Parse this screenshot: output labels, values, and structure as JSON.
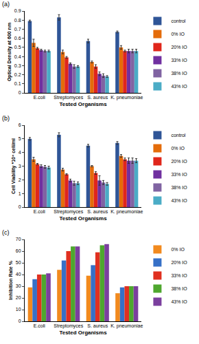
{
  "chart_data": [
    {
      "type": "bar",
      "title": "(a)",
      "x_label": "Tested Organisms",
      "y_label": "Optical Density at 600 nm",
      "categories": [
        "E.coli",
        "Streptomyces",
        "S. aureus",
        "K. pneumoniae"
      ],
      "series": [
        {
          "name": "control",
          "color": "#2f5597",
          "values": [
            0.79,
            0.83,
            0.57,
            0.67
          ],
          "errors": [
            0.01,
            0.03,
            0.02,
            0.01
          ]
        },
        {
          "name": "0% IO",
          "color": "#e46c0a",
          "values": [
            0.55,
            0.45,
            0.34,
            0.5
          ],
          "errors": [
            0.04,
            0.02,
            0.01,
            0.02
          ]
        },
        {
          "name": "20% IO",
          "color": "#e0261b",
          "values": [
            0.49,
            0.39,
            0.29,
            0.46
          ],
          "errors": [
            0.01,
            0.01,
            0.02,
            0.01
          ]
        },
        {
          "name": "33% IO",
          "color": "#7030a0",
          "values": [
            0.47,
            0.32,
            0.21,
            0.46
          ],
          "errors": [
            0.01,
            0.01,
            0.02,
            0.02
          ]
        },
        {
          "name": "38% IO",
          "color": "#8064a2",
          "values": [
            0.46,
            0.29,
            0.19,
            0.46
          ],
          "errors": [
            0.01,
            0.02,
            0.02,
            0.02
          ]
        },
        {
          "name": "43% IO",
          "color": "#4bacc6",
          "values": [
            0.46,
            0.29,
            0.18,
            0.46
          ],
          "errors": [
            0.01,
            0.01,
            0.01,
            0.02
          ]
        }
      ],
      "ylim": [
        0,
        0.9
      ],
      "yticks": [
        0,
        0.1,
        0.2,
        0.3,
        0.4,
        0.5,
        0.6,
        0.7,
        0.8,
        0.9
      ],
      "grid": false,
      "legend": "right"
    },
    {
      "type": "bar",
      "title": "(b)",
      "x_label": "Tested Organisms",
      "y_label": "Cell Viability *10⁸ cell/ml",
      "categories": [
        "E.coli",
        "Streptomyces",
        "S. aureus",
        "K. pneumoniae"
      ],
      "series": [
        {
          "name": "control",
          "color": "#2f5597",
          "values": [
            5.0,
            5.3,
            4.5,
            4.7
          ],
          "errors": [
            0.1,
            0.15,
            0.1,
            0.1
          ]
        },
        {
          "name": "0% IO",
          "color": "#e46c0a",
          "values": [
            3.5,
            2.75,
            3.0,
            3.75
          ],
          "errors": [
            0.15,
            0.1,
            0.05,
            0.1
          ]
        },
        {
          "name": "20% IO",
          "color": "#e0261b",
          "values": [
            3.15,
            2.4,
            2.5,
            3.5
          ],
          "errors": [
            0.05,
            0.05,
            0.1,
            0.1
          ]
        },
        {
          "name": "33% IO",
          "color": "#7030a0",
          "values": [
            3.0,
            1.95,
            1.95,
            3.4
          ],
          "errors": [
            0.1,
            0.1,
            0.35,
            0.2
          ]
        },
        {
          "name": "38% IO",
          "color": "#8064a2",
          "values": [
            2.95,
            1.75,
            1.8,
            3.4
          ],
          "errors": [
            0.1,
            0.15,
            0.15,
            0.2
          ]
        },
        {
          "name": "43% IO",
          "color": "#4bacc6",
          "values": [
            2.9,
            1.75,
            1.7,
            3.4
          ],
          "errors": [
            0.1,
            0.1,
            0.1,
            0.15
          ]
        }
      ],
      "ylim": [
        0,
        6
      ],
      "yticks": [
        0,
        1,
        2,
        3,
        4,
        5,
        6
      ],
      "grid": false,
      "legend": "right"
    },
    {
      "type": "bar",
      "title": "(c)",
      "x_label": "Tested Organisms",
      "y_label": "Inhibition Rate %",
      "categories": [
        "E.coli",
        "Streptomyces",
        "S. aureus",
        "K. pneumoniae"
      ],
      "series": [
        {
          "name": "0% IO",
          "color": "#f28a1e",
          "values": [
            29,
            44,
            39,
            24
          ]
        },
        {
          "name": "20% IO",
          "color": "#3670c7",
          "values": [
            36,
            52,
            48,
            29
          ]
        },
        {
          "name": "33% IO",
          "color": "#e03020",
          "values": [
            40,
            60,
            59,
            30
          ]
        },
        {
          "name": "38% IO",
          "color": "#4ea72e",
          "values": [
            40,
            64,
            65,
            30
          ]
        },
        {
          "name": "43% IO",
          "color": "#7b3f9e",
          "values": [
            41,
            64,
            66,
            30
          ]
        }
      ],
      "ylim": [
        0,
        70
      ],
      "yticks": [
        0,
        10,
        20,
        30,
        40,
        50,
        60,
        70
      ],
      "grid": false,
      "legend": "right"
    }
  ]
}
